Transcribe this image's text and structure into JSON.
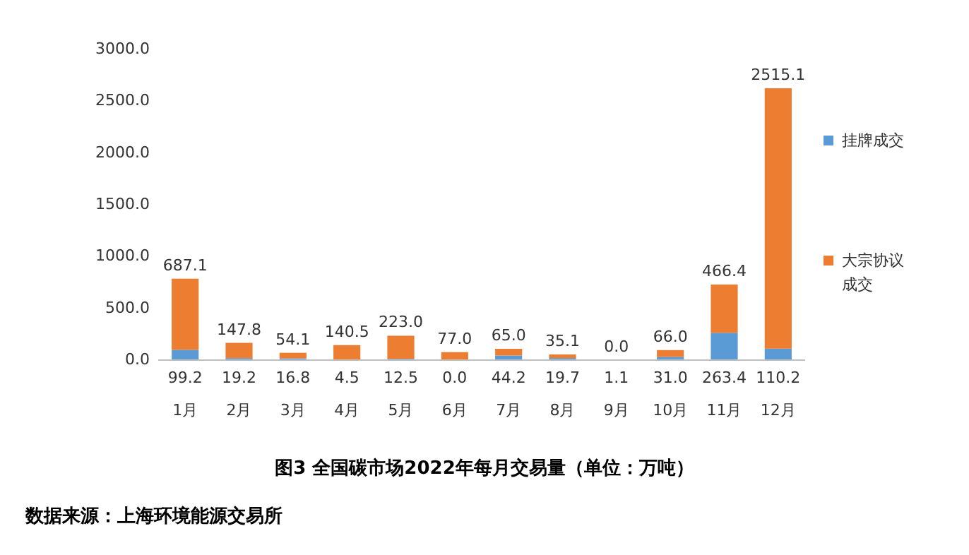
{
  "chart_data": {
    "type": "bar",
    "stacked": true,
    "title": "图3 全国碳市场2022年每月交易量（单位：万吨）",
    "annotations": [
      "数据来源：上海环境能源交易所"
    ],
    "categories": [
      "1月",
      "2月",
      "3月",
      "4月",
      "5月",
      "6月",
      "7月",
      "8月",
      "9月",
      "10月",
      "11月",
      "12月"
    ],
    "series": [
      {
        "name": "挂牌成交",
        "color": "#5b9bd5",
        "values": [
          99.2,
          19.2,
          16.8,
          4.5,
          12.5,
          0.0,
          44.2,
          19.7,
          1.1,
          31.0,
          263.4,
          110.2
        ],
        "value_labels": [
          "99.2",
          "19.2",
          "16.8",
          "4.5",
          "12.5",
          "0.0",
          "44.2",
          "19.7",
          "1.1",
          "31.0",
          "263.4",
          "110.2"
        ]
      },
      {
        "name": "大宗协议成交",
        "color": "#ed7d31",
        "values": [
          687.1,
          147.8,
          54.1,
          140.5,
          223.0,
          77.0,
          65.0,
          35.1,
          0.0,
          66.0,
          466.4,
          2515.1
        ],
        "value_labels": [
          "687.1",
          "147.8",
          "54.1",
          "140.5",
          "223.0",
          "77.0",
          "65.0",
          "35.1",
          "0.0",
          "66.0",
          "466.4",
          "2515.1"
        ]
      }
    ],
    "ylim": [
      0,
      3000
    ],
    "yticks": [
      {
        "value": 0,
        "label": "0.0"
      },
      {
        "value": 500,
        "label": "500.0"
      },
      {
        "value": 1000,
        "label": "1000.0"
      },
      {
        "value": 1500,
        "label": "1500.0"
      },
      {
        "value": 2000,
        "label": "2000.0"
      },
      {
        "value": 2500,
        "label": "2500.0"
      },
      {
        "value": 3000,
        "label": "3000.0"
      }
    ],
    "grid": false,
    "legend": "right"
  }
}
